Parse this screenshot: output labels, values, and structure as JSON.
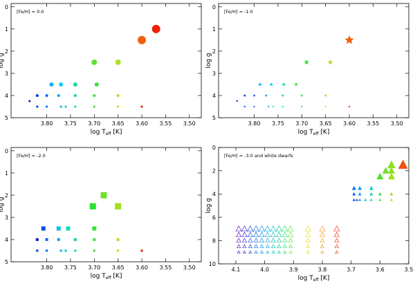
{
  "chart_data": [
    {
      "type": "scatter",
      "marker": "circle",
      "annotation": "[Fe/H] = 0.0",
      "xlabel": {
        "main": "log T",
        "sub": "eff",
        "rest": " [K]"
      },
      "ylabel": "log g",
      "xlim": [
        3.875,
        3.475
      ],
      "ylim": [
        5,
        -0.15
      ],
      "xticks": [
        {
          "value": 3.8,
          "label": "3.80"
        },
        {
          "value": 3.75,
          "label": "3.75"
        },
        {
          "value": 3.7,
          "label": "3.70"
        },
        {
          "value": 3.65,
          "label": "3.65"
        },
        {
          "value": 3.6,
          "label": "3.60"
        },
        {
          "value": 3.55,
          "label": "3.55"
        },
        {
          "value": 3.5,
          "label": "3.50"
        }
      ],
      "yticks": [
        0,
        1,
        2,
        3,
        4,
        5
      ],
      "series": [
        {
          "filled": true,
          "x": [
            3.836,
            3.82,
            3.8,
            3.775,
            3.74,
            3.7,
            3.65,
            3.82,
            3.8,
            3.77,
            3.76,
            3.74,
            3.7,
            3.65,
            3.6,
            3.79,
            3.77,
            3.74,
            3.695,
            3.7,
            3.65,
            3.6,
            3.57
          ],
          "y": [
            4.25,
            4.0,
            4.0,
            4.0,
            4.0,
            4.0,
            4.0,
            4.5,
            4.5,
            4.5,
            4.5,
            4.5,
            4.5,
            4.5,
            4.5,
            3.5,
            3.5,
            3.5,
            3.5,
            2.5,
            2.5,
            1.5,
            1.0
          ],
          "sizes": [
            1.5,
            2,
            2,
            2,
            2,
            2,
            2,
            1.6,
            1.6,
            1.6,
            1.6,
            1.6,
            1.6,
            1.6,
            1.6,
            3,
            3,
            3,
            3,
            4,
            4,
            6,
            6
          ],
          "colors": [
            "#1010a0",
            "#1030d0",
            "#1060f0",
            "#10a0f0",
            "#10d0a0",
            "#40e040",
            "#b0e020",
            "#1040e0",
            "#1070f0",
            "#10b0f0",
            "#10d0e0",
            "#10e0a0",
            "#50e040",
            "#c0e020",
            "#e03010",
            "#10b0f0",
            "#10d0f0",
            "#10e0a0",
            "#40e040",
            "#60e030",
            "#b0e020",
            "#f06010",
            "#f02000"
          ]
        }
      ]
    },
    {
      "type": "scatter",
      "marker": "star",
      "annotation": "[Fe/H] = -1.0",
      "xlabel": {
        "main": "log T",
        "sub": "eff",
        "rest": " [K]"
      },
      "ylabel": "log g",
      "xlim": [
        3.875,
        3.475
      ],
      "ylim": [
        5,
        -0.15
      ],
      "xticks": [
        {
          "value": 3.8,
          "label": "3.80"
        },
        {
          "value": 3.75,
          "label": "3.75"
        },
        {
          "value": 3.7,
          "label": "3.70"
        },
        {
          "value": 3.65,
          "label": "3.65"
        },
        {
          "value": 3.6,
          "label": "3.60"
        },
        {
          "value": 3.55,
          "label": "3.55"
        },
        {
          "value": 3.5,
          "label": "3.50"
        }
      ],
      "yticks": [
        0,
        1,
        2,
        3,
        4,
        5
      ],
      "series": [
        {
          "filled": true,
          "x": [
            3.836,
            3.82,
            3.8,
            3.775,
            3.74,
            3.7,
            3.65,
            3.82,
            3.8,
            3.77,
            3.76,
            3.74,
            3.7,
            3.65,
            3.6,
            3.788,
            3.764,
            3.738,
            3.712,
            3.69,
            3.64,
            3.6
          ],
          "y": [
            4.25,
            4.0,
            4.0,
            4.0,
            4.0,
            4.0,
            4.0,
            4.5,
            4.5,
            4.5,
            4.5,
            4.5,
            4.5,
            4.5,
            4.5,
            3.5,
            3.5,
            3.5,
            3.5,
            2.5,
            2.5,
            1.5
          ],
          "sizes": [
            1.8,
            2.2,
            2.2,
            2.2,
            2.2,
            2.2,
            2.2,
            1.8,
            1.8,
            1.8,
            1.8,
            1.8,
            1.8,
            1.8,
            1.8,
            3,
            3,
            3,
            3,
            4,
            4,
            7
          ],
          "colors": [
            "#1010a0",
            "#1030d0",
            "#1060f0",
            "#10a0f0",
            "#10d0a0",
            "#40e040",
            "#b0e020",
            "#1040e0",
            "#1070f0",
            "#10b0f0",
            "#10d0e0",
            "#10e0a0",
            "#50e040",
            "#c0e020",
            "#e03010",
            "#10b0f0",
            "#10d0f0",
            "#10e0a0",
            "#40e040",
            "#30e030",
            "#b0e020",
            "#f06010"
          ]
        }
      ]
    },
    {
      "type": "scatter",
      "marker": "square",
      "annotation": "[Fe/H] = -2.0",
      "xlabel": {
        "main": "log T",
        "sub": "eff",
        "rest": " [K]"
      },
      "ylabel": "log g",
      "xlim": [
        3.875,
        3.475
      ],
      "ylim": [
        5,
        -0.15
      ],
      "xticks": [
        {
          "value": 3.8,
          "label": "3.80"
        },
        {
          "value": 3.75,
          "label": "3.75"
        },
        {
          "value": 3.7,
          "label": "3.70"
        },
        {
          "value": 3.65,
          "label": "3.65"
        },
        {
          "value": 3.6,
          "label": "3.60"
        },
        {
          "value": 3.55,
          "label": "3.55"
        },
        {
          "value": 3.5,
          "label": "3.50"
        }
      ],
      "yticks": [
        0,
        1,
        2,
        3,
        4,
        5
      ],
      "series": [
        {
          "filled": true,
          "x": [
            3.82,
            3.8,
            3.775,
            3.74,
            3.7,
            3.65,
            3.82,
            3.8,
            3.77,
            3.76,
            3.74,
            3.7,
            3.65,
            3.6,
            3.807,
            3.775,
            3.755,
            3.7,
            3.703,
            3.68,
            3.65
          ],
          "y": [
            4.0,
            4.0,
            4.0,
            4.0,
            4.0,
            4.0,
            4.5,
            4.5,
            4.5,
            4.5,
            4.5,
            4.5,
            4.5,
            4.5,
            3.5,
            3.5,
            3.5,
            3.5,
            2.5,
            2.0,
            2.5
          ],
          "sizes": [
            2,
            2,
            2,
            2,
            2,
            2,
            1.6,
            1.6,
            1.6,
            1.6,
            1.6,
            1.6,
            1.6,
            1.6,
            3,
            3,
            3,
            3,
            4.5,
            4.5,
            4.5
          ],
          "colors": [
            "#1020b0",
            "#1060f0",
            "#10a0f0",
            "#10d0a0",
            "#40e040",
            "#b0e020",
            "#1040e0",
            "#1070f0",
            "#10b0f0",
            "#10d0e0",
            "#10e0a0",
            "#50e040",
            "#c0e020",
            "#e03010",
            "#1050e0",
            "#10c0f0",
            "#10e0c0",
            "#40e040",
            "#30e030",
            "#70e030",
            "#a0e020"
          ]
        }
      ]
    },
    {
      "type": "scatter",
      "marker": "triangle",
      "annotation": "[Fe/H] = -3.0 and white dwarfs",
      "xlabel": {
        "main": "log T",
        "sub": "eff",
        "rest": " [K]"
      },
      "ylabel": "log g",
      "xlim": [
        4.16,
        3.5
      ],
      "ylim": [
        10,
        0
      ],
      "xticks": [
        4.1,
        {
          "value": 4.0,
          "label": "4.0"
        },
        3.9,
        3.8,
        3.7,
        3.6,
        3.5
      ],
      "yticks": [
        0,
        2,
        4,
        6,
        8,
        10
      ],
      "series": [
        {
          "filled": true,
          "x": [
            3.52,
            3.56,
            3.56,
            3.56,
            3.58,
            3.6,
            3.69,
            3.67,
            3.63,
            3.69,
            3.67,
            3.63,
            3.6,
            3.56,
            3.69,
            3.68,
            3.67,
            3.65,
            3.63,
            3.6,
            3.56
          ],
          "y": [
            1.5,
            1.5,
            2.0,
            2.5,
            2.0,
            2.5,
            3.5,
            3.5,
            3.5,
            4.0,
            4.0,
            4.0,
            4.0,
            4.0,
            4.5,
            4.5,
            4.5,
            4.5,
            4.5,
            4.5,
            4.5
          ],
          "sizes": [
            7,
            6,
            5,
            5,
            5,
            5,
            3,
            3,
            3,
            2.5,
            2.5,
            2.5,
            2.5,
            2.5,
            2,
            2,
            2,
            2,
            2,
            2,
            2
          ],
          "colors": [
            "#f05010",
            "#90e020",
            "#90e020",
            "#a0e020",
            "#70e030",
            "#50e030",
            "#1070f0",
            "#10a0f0",
            "#10d0c0",
            "#1060f0",
            "#10a0f0",
            "#10d0b0",
            "#40e040",
            "#a0e020",
            "#1040e0",
            "#1070f0",
            "#10a0f0",
            "#10c0e0",
            "#10e0a0",
            "#50e040",
            "#c0e020"
          ]
        },
        {
          "filled": false,
          "x": [
            4.09,
            4.07,
            4.05,
            4.03,
            4.01,
            3.99,
            3.97,
            3.95,
            3.93,
            3.91,
            3.85,
            3.8,
            3.75,
            4.09,
            4.07,
            4.05,
            4.03,
            4.01,
            3.99,
            3.97,
            3.95,
            3.93,
            3.91,
            3.85,
            3.8,
            3.75,
            4.09,
            4.07,
            4.05,
            4.03,
            4.01,
            3.99,
            3.97,
            3.95,
            3.93,
            3.91,
            3.85,
            3.8,
            3.75,
            4.09,
            4.07,
            4.05,
            4.03,
            4.01,
            3.99,
            3.97,
            3.95,
            3.93,
            3.91,
            3.85,
            3.8,
            3.75,
            4.09,
            4.07,
            4.05,
            4.03,
            4.01,
            3.99,
            3.97,
            3.95,
            3.93,
            3.91,
            3.85,
            3.8,
            3.75
          ],
          "y": [
            7,
            7,
            7,
            7,
            7,
            7,
            7,
            7,
            7,
            7,
            7,
            7,
            7,
            7.5,
            7.5,
            7.5,
            7.5,
            7.5,
            7.5,
            7.5,
            7.5,
            7.5,
            7.5,
            7.5,
            7.5,
            7.5,
            8,
            8,
            8,
            8,
            8,
            8,
            8,
            8,
            8,
            8,
            8,
            8,
            8,
            8.5,
            8.5,
            8.5,
            8.5,
            8.5,
            8.5,
            8.5,
            8.5,
            8.5,
            8.5,
            8.5,
            8.5,
            8.5,
            9,
            9,
            9,
            9,
            9,
            9,
            9,
            9,
            9,
            9,
            9,
            9,
            9
          ],
          "sizes": [
            4,
            4,
            4,
            4,
            4,
            4,
            4,
            4,
            4,
            4,
            4,
            4,
            4,
            3.5,
            3.5,
            3.5,
            3.5,
            3.5,
            3.5,
            3.5,
            3.5,
            3.5,
            3.5,
            3.5,
            3.5,
            3.5,
            3,
            3,
            3,
            3,
            3,
            3,
            3,
            3,
            3,
            3,
            3,
            3,
            3,
            2.5,
            2.5,
            2.5,
            2.5,
            2.5,
            2.5,
            2.5,
            2.5,
            2.5,
            2.5,
            2.5,
            2.5,
            2.5,
            2,
            2,
            2,
            2,
            2,
            2,
            2,
            2,
            2,
            2,
            2,
            2,
            2
          ],
          "colors": [
            "#6020c0",
            "#4030d0",
            "#2050e0",
            "#1070f0",
            "#1090f0",
            "#10b0e0",
            "#10c0c0",
            "#10d0a0",
            "#30e070",
            "#70e040",
            "#e0e020",
            "#f0a020",
            "#f04020",
            "#6020c0",
            "#4030d0",
            "#2050e0",
            "#1070f0",
            "#1090f0",
            "#10b0e0",
            "#10c0c0",
            "#10d0a0",
            "#30e070",
            "#70e040",
            "#e0e020",
            "#f0a020",
            "#f04020",
            "#6020c0",
            "#4030d0",
            "#2050e0",
            "#1070f0",
            "#1090f0",
            "#10b0e0",
            "#10c0c0",
            "#10d0a0",
            "#30e070",
            "#70e040",
            "#e0e020",
            "#f0a020",
            "#f04020",
            "#6020c0",
            "#4030d0",
            "#2050e0",
            "#1070f0",
            "#1090f0",
            "#10b0e0",
            "#10c0c0",
            "#10d0a0",
            "#30e070",
            "#70e040",
            "#e0e020",
            "#f0a020",
            "#f04020",
            "#6020c0",
            "#4030d0",
            "#2050e0",
            "#1070f0",
            "#1090f0",
            "#10b0e0",
            "#10c0c0",
            "#10d0a0",
            "#30e070",
            "#70e040",
            "#e0e020",
            "#f0a020",
            "#f04020"
          ]
        }
      ]
    }
  ]
}
